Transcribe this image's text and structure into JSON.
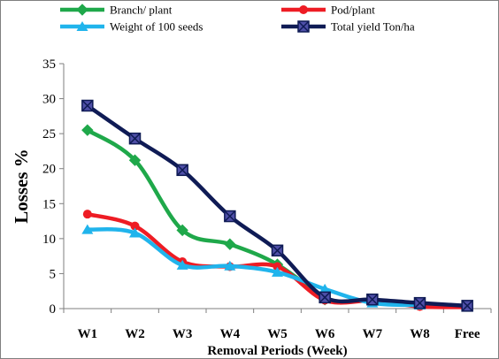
{
  "chart_data": {
    "type": "line",
    "title": "",
    "xlabel": "Removal Periods (Week)",
    "ylabel": "Losses %",
    "categories": [
      "W1",
      "W2",
      "W3",
      "W4",
      "W5",
      "W6",
      "W7",
      "W8",
      "Free"
    ],
    "ylim": [
      0,
      35
    ],
    "yticks": [
      0,
      5,
      10,
      15,
      20,
      25,
      30,
      35
    ],
    "grid": false,
    "legend": "top",
    "series": [
      {
        "name": "Branch/ plant",
        "color": "#1fa84a",
        "marker": "diamond",
        "values": [
          25.5,
          21.2,
          11.2,
          9.2,
          6.3,
          1.3,
          null,
          null,
          null
        ]
      },
      {
        "name": "Pod/plant",
        "color": "#ee1c24",
        "marker": "circle",
        "values": [
          13.5,
          11.8,
          6.7,
          6.0,
          6.0,
          1.2,
          1.1,
          0.3,
          0.2
        ]
      },
      {
        "name": "Weight of 100 seeds",
        "color": "#20b4ec",
        "marker": "triangle",
        "values": [
          11.3,
          10.8,
          6.2,
          6.1,
          5.2,
          2.8,
          0.8,
          0.5,
          null
        ]
      },
      {
        "name": "Total yield Ton/ha",
        "color": "#0f1b55",
        "marker": "square-x",
        "values": [
          29.0,
          24.3,
          19.8,
          13.2,
          8.3,
          1.6,
          1.3,
          0.8,
          0.4
        ]
      }
    ]
  }
}
